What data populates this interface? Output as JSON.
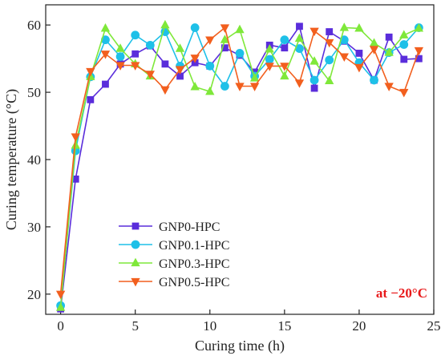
{
  "chart_data": {
    "type": "line",
    "title": "",
    "xlabel": "Curing time (h)",
    "ylabel": "Curing temperature (°C)",
    "xlim": [
      -1,
      25
    ],
    "ylim": [
      17,
      63
    ],
    "xticks": [
      0,
      5,
      10,
      15,
      20,
      25
    ],
    "yticks": [
      20,
      30,
      40,
      50,
      60
    ],
    "grid": false,
    "legend_position": "lower-left",
    "annotation": {
      "text": "at −20°C",
      "color": "#e8191a"
    },
    "x": [
      0,
      1,
      2,
      3,
      4,
      5,
      6,
      7,
      8,
      9,
      10,
      11,
      12,
      13,
      14,
      15,
      16,
      17,
      18,
      19,
      20,
      21,
      22,
      23,
      24
    ],
    "series": [
      {
        "name": "GNP0-HPC",
        "color": "#5a2ddb",
        "marker": "square",
        "values": [
          17.8,
          37.1,
          48.9,
          51.2,
          54.2,
          55.7,
          56.9,
          54.2,
          52.4,
          54.4,
          53.9,
          56.6,
          55.5,
          53.0,
          57.0,
          56.6,
          59.8,
          50.6,
          59.0,
          57.6,
          55.8,
          51.8,
          58.2,
          54.9,
          55.0
        ]
      },
      {
        "name": "GNP0.1-HPC",
        "color": "#1ec0e8",
        "marker": "circle",
        "values": [
          18.3,
          41.3,
          52.3,
          57.8,
          55.3,
          58.5,
          57.0,
          59.0,
          53.9,
          59.6,
          53.9,
          50.9,
          55.8,
          52.4,
          54.9,
          57.8,
          56.5,
          51.8,
          54.8,
          57.8,
          54.4,
          51.8,
          55.9,
          57.1,
          59.6
        ]
      },
      {
        "name": "GNP0.3-HPC",
        "color": "#7fe83a",
        "marker": "triangle-up",
        "values": [
          18.0,
          42.1,
          52.3,
          59.5,
          56.5,
          54.2,
          52.4,
          60.0,
          56.5,
          50.8,
          50.1,
          57.8,
          59.3,
          52.1,
          56.4,
          52.4,
          58.0,
          54.6,
          51.7,
          59.6,
          59.5,
          57.3,
          55.9,
          58.5,
          59.5
        ]
      },
      {
        "name": "GNP0.5-HPC",
        "color": "#f25f1e",
        "marker": "triangle-down",
        "values": [
          20.0,
          43.4,
          53.1,
          55.7,
          54.0,
          54.0,
          52.7,
          50.4,
          53.4,
          55.1,
          57.8,
          59.6,
          50.9,
          50.9,
          53.9,
          53.9,
          51.4,
          59.1,
          57.4,
          55.3,
          53.7,
          56.4,
          50.9,
          50.0,
          56.2
        ]
      }
    ]
  }
}
